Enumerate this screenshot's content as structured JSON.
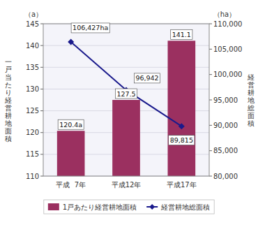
{
  "chart_data": {
    "type": "bar",
    "categories": [
      "平成  7年",
      "平成12年",
      "平成17年"
    ],
    "series": [
      {
        "name": "1戸あたり経営耕地面積",
        "type": "bar",
        "color": "#9b3060",
        "values": [
          120.4,
          127.5,
          141.1
        ],
        "value_labels": [
          "120.4a",
          "127.5",
          "141.1"
        ]
      },
      {
        "name": "経営耕地総面積",
        "type": "line",
        "axis": "y2",
        "color": "#1a1a8c",
        "marker": "diamond",
        "line_style": "solid",
        "values": [
          106427,
          96942,
          89815
        ],
        "value_labels": [
          "106,427ha",
          "96,942",
          "89,815"
        ]
      }
    ],
    "ylabel": "一戸当たり経営耕地面積",
    "y2label": "経営耕地総面積",
    "annotations": [
      "（a）",
      "（ha）"
    ],
    "ylim": [
      110,
      145
    ],
    "yticks": [
      110,
      115,
      120,
      125,
      130,
      135,
      140,
      145
    ],
    "y2lim": [
      80000,
      110000
    ],
    "y2ticks": [
      {
        "value": 80000,
        "label": "80,000"
      },
      {
        "value": 85000,
        "label": "85,000"
      },
      {
        "value": 90000,
        "label": "90,000"
      },
      {
        "value": 95000,
        "label": "95,000"
      },
      {
        "value": 100000,
        "label": "100,000"
      },
      {
        "value": 105000,
        "label": "105,000"
      },
      {
        "value": 110000,
        "label": "110,000"
      }
    ],
    "grid": true,
    "legend": "bottom",
    "data_labels": true
  }
}
